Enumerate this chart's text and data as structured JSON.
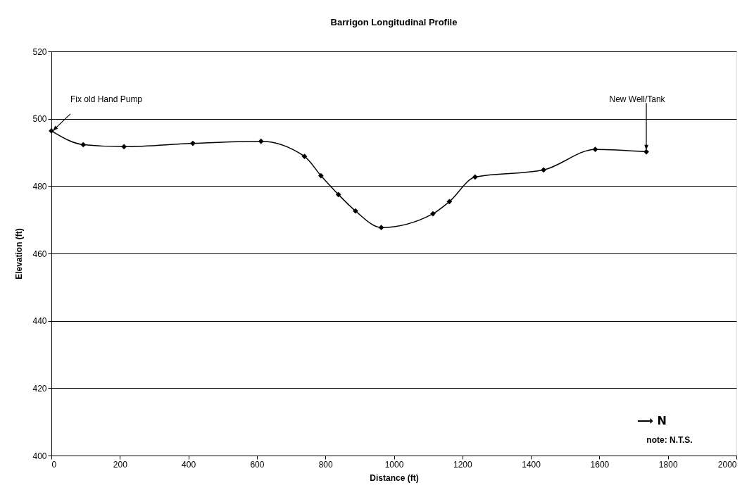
{
  "chart_data": {
    "type": "line",
    "title": "Barrigon Longitudinal Profile",
    "xlabel": "Distance (ft)",
    "ylabel": "Elevation (ft)",
    "x": [
      0,
      93,
      212,
      413,
      612,
      739,
      787,
      838,
      888,
      963,
      1114,
      1162,
      1237,
      1437,
      1588,
      1737
    ],
    "series": [
      {
        "color": "#000000",
        "values": [
          496.4,
          492.3,
          491.7,
          492.7,
          493.3,
          488.8,
          483.1,
          477.5,
          472.6,
          467.7,
          471.8,
          475.4,
          482.7,
          484.8,
          490.9,
          490.2
        ]
      }
    ],
    "xlim": [
      0,
      2000
    ],
    "xticks": [
      0,
      200,
      400,
      600,
      800,
      1000,
      1200,
      1400,
      1600,
      1800,
      2000
    ],
    "ylim": [
      400,
      520
    ],
    "yticks": [
      400,
      420,
      440,
      460,
      480,
      500,
      520
    ],
    "grid": "y",
    "marker": "diamond",
    "line_style": "solid",
    "annotations": [
      {
        "text": "Fix old Hand Pump",
        "x": 0,
        "y": 496.4
      },
      {
        "text": "New Well/Tank",
        "x": 1737,
        "y": 490.2
      },
      "⟶ N",
      "note: N.T.S."
    ]
  }
}
